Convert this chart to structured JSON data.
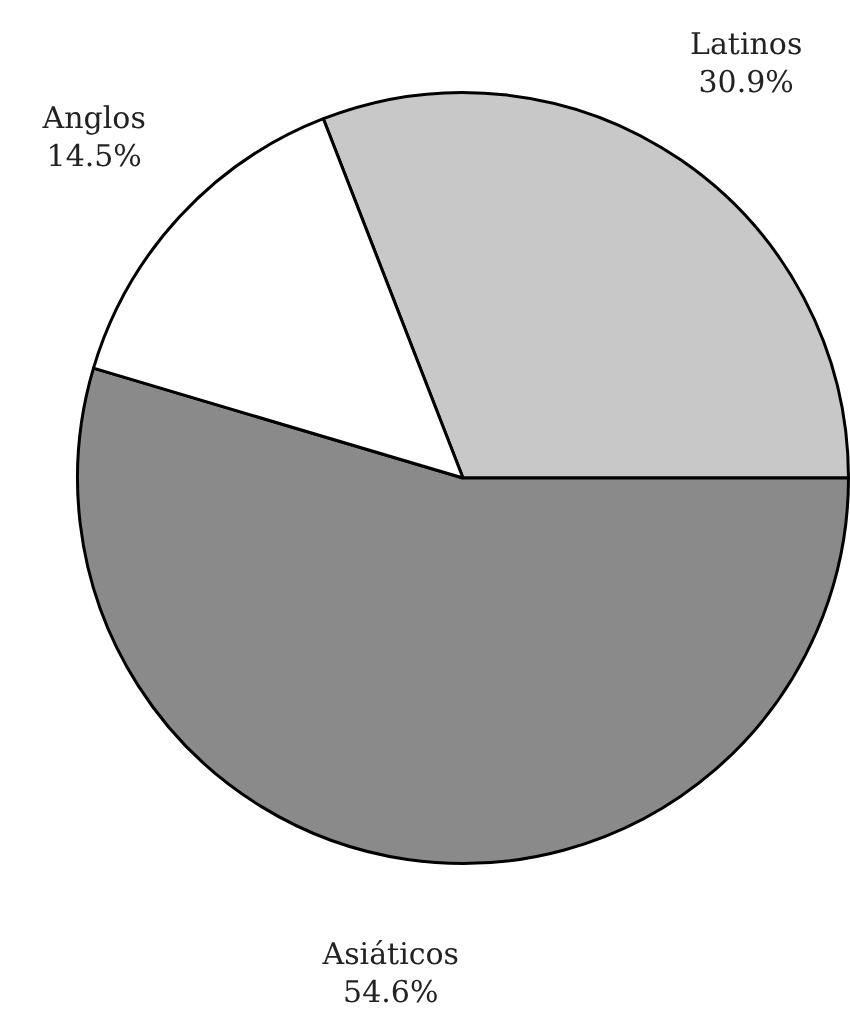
{
  "chart_data": {
    "type": "pie",
    "categories": [
      "Latinos",
      "Asiáticos",
      "Anglos"
    ],
    "values": [
      30.9,
      54.6,
      14.5
    ],
    "value_labels": [
      "30.9%",
      "54.6%",
      "14.5%"
    ],
    "colors": [
      "#c8c8c8",
      "#8a8a8a",
      "#ffffff"
    ],
    "legend": false
  }
}
